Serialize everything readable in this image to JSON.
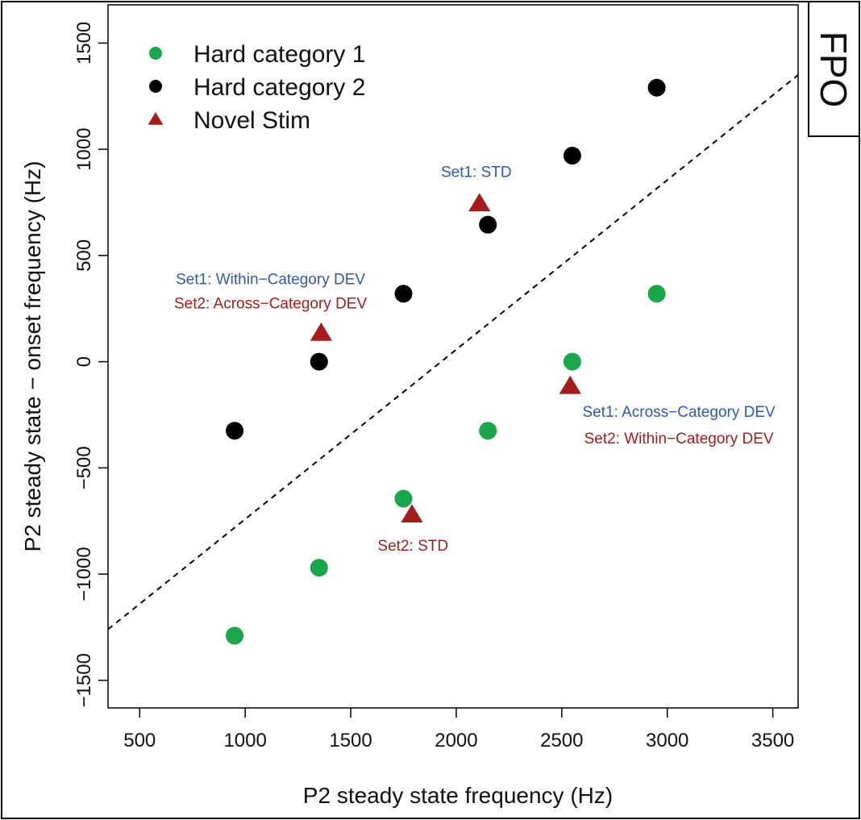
{
  "fpo_label": "FPO",
  "chart_data": {
    "type": "scatter",
    "xlabel": "P2 steady state frequency (Hz)",
    "ylabel": "P2 steady state − onset frequency (Hz)",
    "xlim": [
      350,
      3620
    ],
    "ylim": [
      -1630,
      1680
    ],
    "x_ticks": [
      500,
      1000,
      1500,
      2000,
      2500,
      3000,
      3500
    ],
    "y_ticks": [
      -1500,
      -1000,
      -500,
      0,
      500,
      1000,
      1500
    ],
    "x_tick_labels": [
      "500",
      "1000",
      "1500",
      "2000",
      "2500",
      "3000",
      "3500"
    ],
    "y_tick_labels": [
      "−1500",
      "−1000",
      "−500",
      "0",
      "500",
      "1000",
      "1500"
    ],
    "legend_position": "top-left",
    "reference_line": {
      "style": "dashed",
      "color": "#000000",
      "points": [
        [
          350,
          -1260
        ],
        [
          3620,
          1350
        ]
      ]
    },
    "series": [
      {
        "name": "Hard category 1",
        "marker": "circle",
        "color": "#1aa64b",
        "points": [
          [
            950,
            -1290
          ],
          [
            1350,
            -970
          ],
          [
            1750,
            -645
          ],
          [
            2150,
            -325
          ],
          [
            2550,
            0
          ],
          [
            2950,
            320
          ]
        ]
      },
      {
        "name": "Hard category 2",
        "marker": "circle",
        "color": "#000000",
        "points": [
          [
            950,
            -325
          ],
          [
            1350,
            0
          ],
          [
            1750,
            320
          ],
          [
            2150,
            645
          ],
          [
            2550,
            970
          ],
          [
            2950,
            1290
          ]
        ]
      },
      {
        "name": "Novel Stim",
        "marker": "triangle",
        "color": "#a51c1c",
        "points": [
          [
            2110,
            745
          ],
          [
            1360,
            135
          ],
          [
            2540,
            -115
          ],
          [
            1790,
            -720
          ]
        ]
      }
    ],
    "annotations": [
      {
        "text": "Set1: STD",
        "color": "#2e5aa8",
        "x": 2095,
        "y": 870
      },
      {
        "text": "Set1: Within−Category DEV",
        "color": "#2e5aa8",
        "x": 1120,
        "y": 365
      },
      {
        "text": "Set2: Across−Category DEV",
        "color": "#a51c1c",
        "x": 1120,
        "y": 250
      },
      {
        "text": "Set1: Across−Category DEV",
        "color": "#2e5aa8",
        "x": 3055,
        "y": -260
      },
      {
        "text": "Set2: Within−Category DEV",
        "color": "#a51c1c",
        "x": 3055,
        "y": -385
      },
      {
        "text": "Set2: STD",
        "color": "#a51c1c",
        "x": 1795,
        "y": -890
      }
    ]
  }
}
